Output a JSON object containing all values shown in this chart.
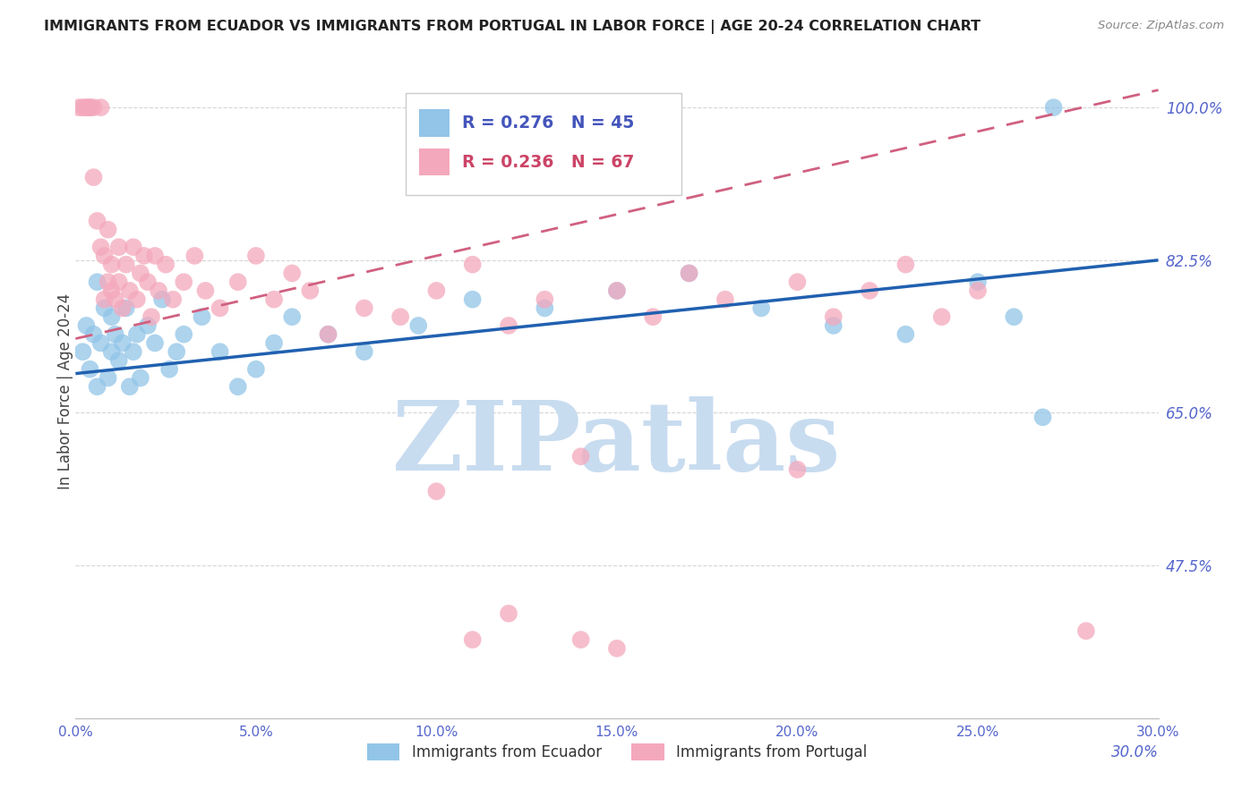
{
  "title": "IMMIGRANTS FROM ECUADOR VS IMMIGRANTS FROM PORTUGAL IN LABOR FORCE | AGE 20-24 CORRELATION CHART",
  "source": "Source: ZipAtlas.com",
  "ylabel": "In Labor Force | Age 20-24",
  "xlim": [
    0.0,
    0.3
  ],
  "ylim": [
    0.3,
    1.05
  ],
  "xtick_vals": [
    0.0,
    0.05,
    0.1,
    0.15,
    0.2,
    0.25,
    0.3
  ],
  "xtick_labels": [
    "0.0%",
    "5.0%",
    "10.0%",
    "15.0%",
    "20.0%",
    "25.0%",
    "30.0%"
  ],
  "ytick_vals": [
    0.475,
    0.65,
    0.825,
    1.0
  ],
  "ytick_labels": [
    "47.5%",
    "65.0%",
    "82.5%",
    "100.0%"
  ],
  "ecuador_R": 0.276,
  "ecuador_N": 45,
  "portugal_R": 0.236,
  "portugal_N": 67,
  "ecuador_color": "#92C5E8",
  "portugal_color": "#F4A8BC",
  "ecuador_line_color": "#2060B0",
  "portugal_line_color": "#D06080",
  "watermark": "ZIPatlas",
  "watermark_color": "#C8DCF0",
  "grid_color": "#CCCCCC",
  "background_color": "#FFFFFF",
  "ecuador_x": [
    0.002,
    0.003,
    0.004,
    0.005,
    0.006,
    0.006,
    0.007,
    0.008,
    0.009,
    0.01,
    0.01,
    0.011,
    0.012,
    0.013,
    0.014,
    0.015,
    0.016,
    0.017,
    0.018,
    0.02,
    0.022,
    0.024,
    0.026,
    0.028,
    0.03,
    0.035,
    0.04,
    0.045,
    0.05,
    0.055,
    0.06,
    0.07,
    0.08,
    0.095,
    0.11,
    0.13,
    0.15,
    0.17,
    0.19,
    0.21,
    0.23,
    0.25,
    0.26,
    0.268,
    0.271
  ],
  "ecuador_y": [
    0.72,
    0.75,
    0.7,
    0.74,
    0.8,
    0.68,
    0.73,
    0.77,
    0.69,
    0.76,
    0.72,
    0.74,
    0.71,
    0.73,
    0.77,
    0.68,
    0.72,
    0.74,
    0.69,
    0.75,
    0.73,
    0.78,
    0.7,
    0.72,
    0.74,
    0.76,
    0.72,
    0.68,
    0.7,
    0.73,
    0.76,
    0.74,
    0.72,
    0.75,
    0.78,
    0.77,
    0.79,
    0.81,
    0.77,
    0.75,
    0.74,
    0.8,
    0.76,
    0.645,
    1.0
  ],
  "portugal_x": [
    0.001,
    0.002,
    0.003,
    0.003,
    0.004,
    0.004,
    0.005,
    0.005,
    0.006,
    0.007,
    0.007,
    0.008,
    0.008,
    0.009,
    0.009,
    0.01,
    0.01,
    0.011,
    0.012,
    0.012,
    0.013,
    0.014,
    0.015,
    0.016,
    0.017,
    0.018,
    0.019,
    0.02,
    0.021,
    0.022,
    0.023,
    0.025,
    0.027,
    0.03,
    0.033,
    0.036,
    0.04,
    0.045,
    0.05,
    0.055,
    0.06,
    0.065,
    0.07,
    0.08,
    0.09,
    0.1,
    0.11,
    0.12,
    0.13,
    0.14,
    0.15,
    0.16,
    0.17,
    0.18,
    0.2,
    0.21,
    0.22,
    0.23,
    0.24,
    0.25,
    0.14,
    0.1,
    0.2,
    0.11,
    0.12,
    0.15,
    0.28
  ],
  "portugal_y": [
    1.0,
    1.0,
    1.0,
    1.0,
    1.0,
    1.0,
    1.0,
    0.92,
    0.87,
    0.84,
    1.0,
    0.78,
    0.83,
    0.8,
    0.86,
    0.79,
    0.82,
    0.78,
    0.84,
    0.8,
    0.77,
    0.82,
    0.79,
    0.84,
    0.78,
    0.81,
    0.83,
    0.8,
    0.76,
    0.83,
    0.79,
    0.82,
    0.78,
    0.8,
    0.83,
    0.79,
    0.77,
    0.8,
    0.83,
    0.78,
    0.81,
    0.79,
    0.74,
    0.77,
    0.76,
    0.79,
    0.82,
    0.75,
    0.78,
    0.6,
    0.79,
    0.76,
    0.81,
    0.78,
    0.8,
    0.76,
    0.79,
    0.82,
    0.76,
    0.79,
    0.39,
    0.56,
    0.585,
    0.39,
    0.42,
    0.38,
    0.4
  ],
  "ec_line_x0": 0.0,
  "ec_line_x1": 0.3,
  "ec_line_y0": 0.695,
  "ec_line_y1": 0.825,
  "pt_line_x0": 0.0,
  "pt_line_x1": 0.3,
  "pt_line_y0": 0.735,
  "pt_line_y1": 1.02
}
